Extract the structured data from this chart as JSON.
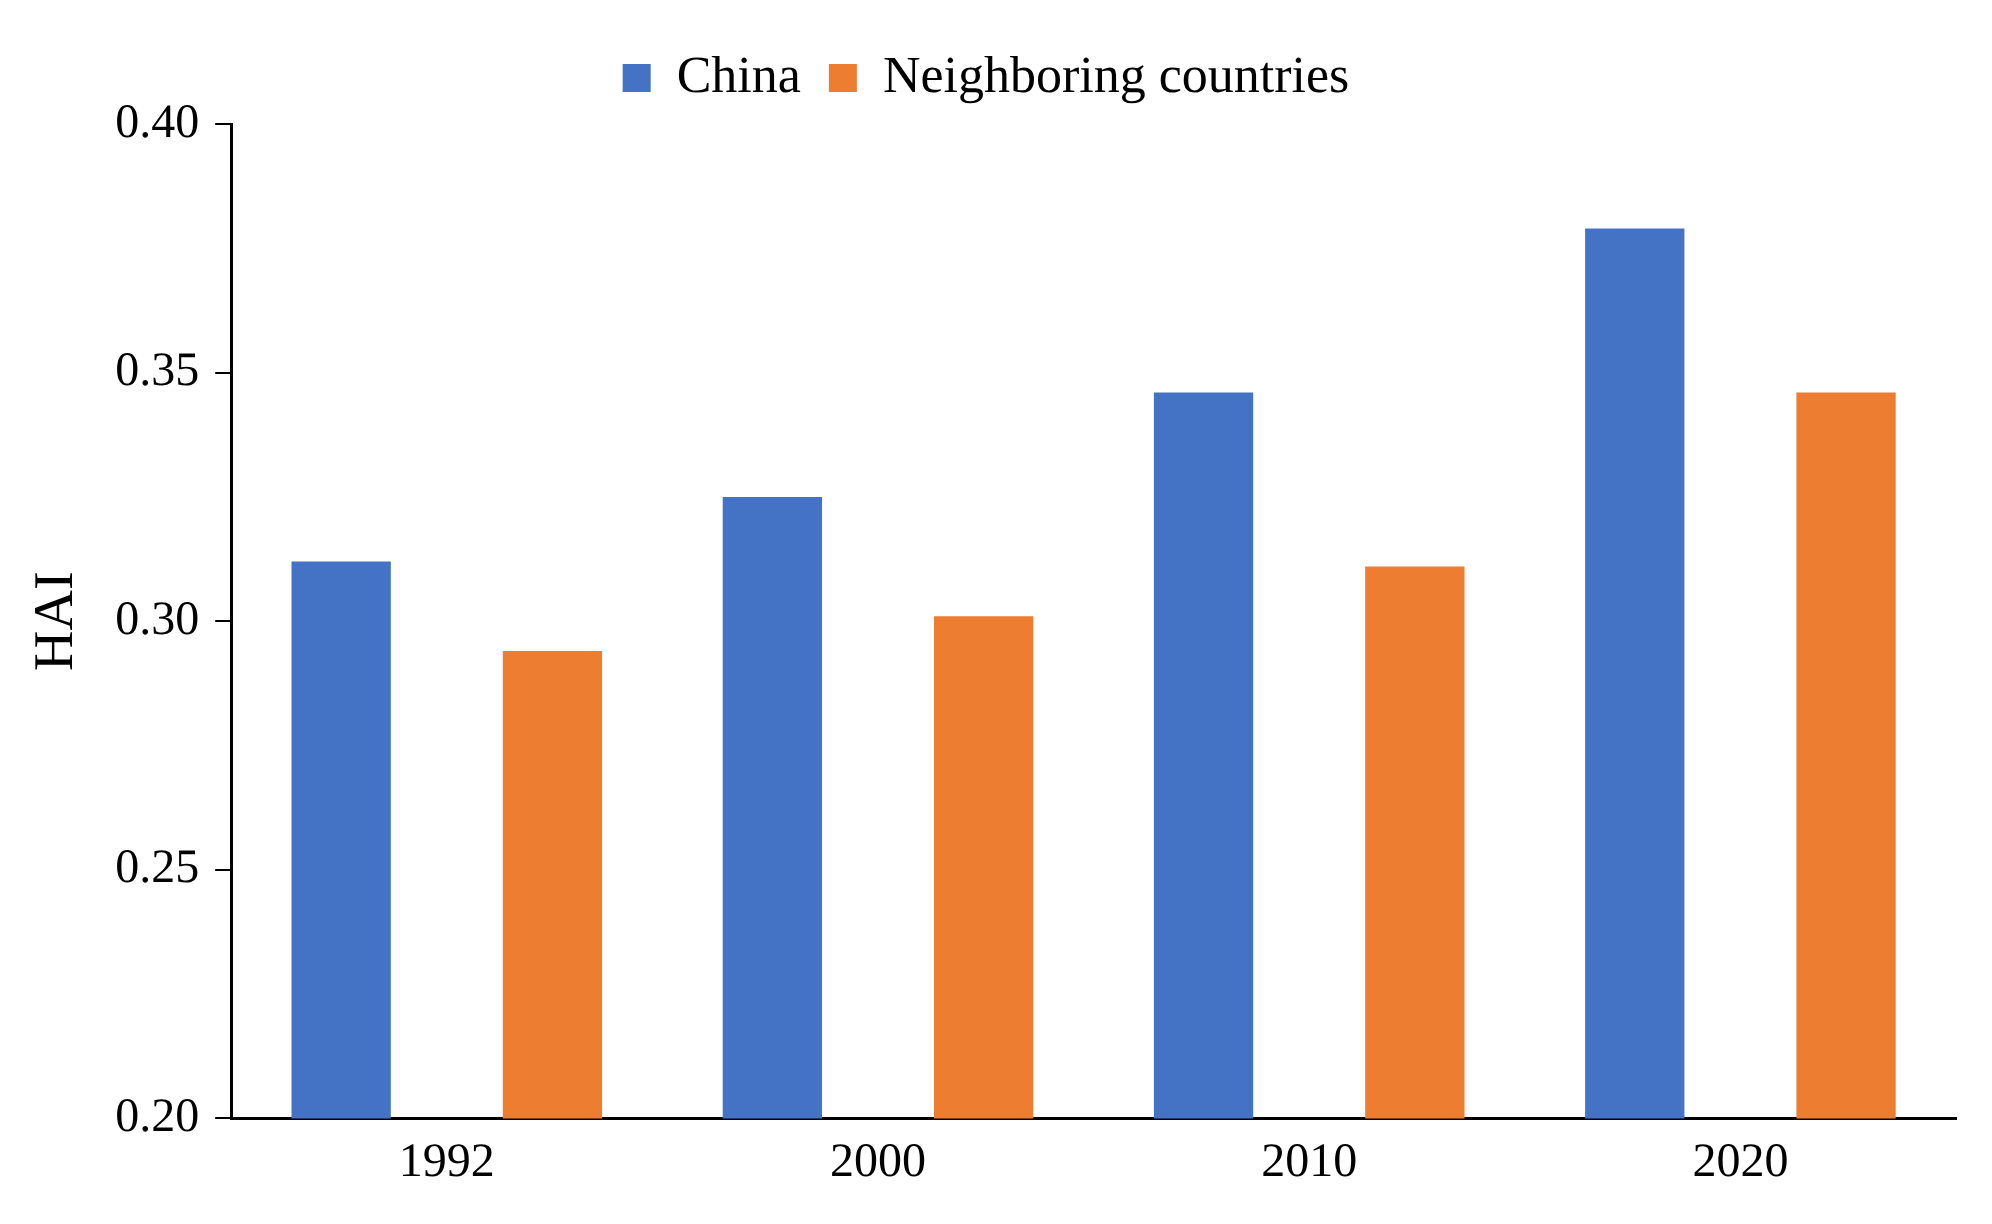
{
  "chart_data": {
    "type": "bar",
    "ylabel": "HAI",
    "categories": [
      "1992",
      "2000",
      "2010",
      "2020"
    ],
    "series": [
      {
        "name": "China",
        "color": "#4472c4",
        "values": [
          0.312,
          0.325,
          0.346,
          0.379
        ]
      },
      {
        "name": "Neighboring countries",
        "color": "#ed7d31",
        "values": [
          0.294,
          0.301,
          0.311,
          0.346
        ]
      }
    ],
    "ylim": [
      0.2,
      0.4
    ],
    "yticks": [
      {
        "value": 0.2,
        "label": "0.20"
      },
      {
        "value": 0.25,
        "label": "0.25"
      },
      {
        "value": 0.3,
        "label": "0.30"
      },
      {
        "value": 0.35,
        "label": "0.35"
      },
      {
        "value": 0.4,
        "label": "0.40"
      }
    ],
    "grid": false,
    "legend": "top"
  }
}
